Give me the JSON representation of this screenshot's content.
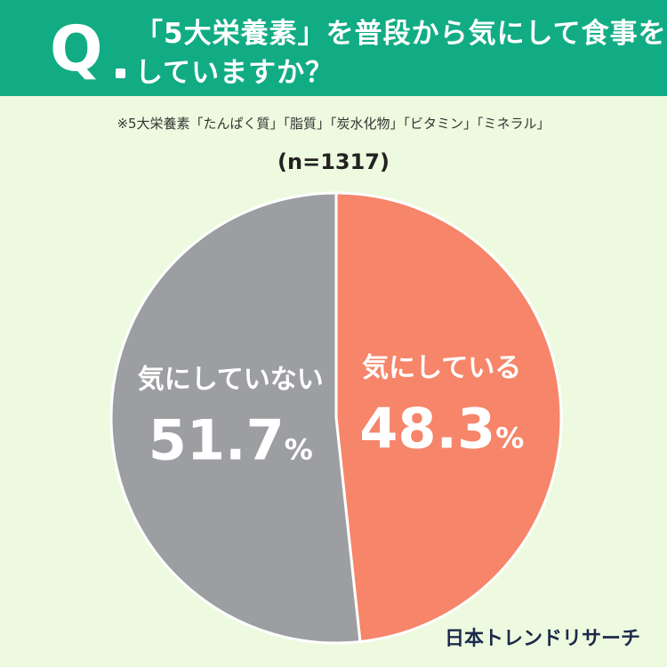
{
  "header": {
    "q_mark": "Q",
    "question_line1": "「5大栄養素」を普段から気にして食事を",
    "question_line2": "していますか？",
    "background_color": "#12ac84"
  },
  "note": "※5大栄養素「たんぱく質」「脂質」「炭水化物」「ビタミン」「ミネラル」",
  "sample_size": "(n=1317)",
  "logo_text": "日本トレンドリサーチ",
  "chart_data": {
    "type": "pie",
    "title": "「5大栄養素」を普段から気にして食事をしていますか？",
    "categories": [
      "気にしている",
      "気にしていない"
    ],
    "values": [
      48.3,
      51.7
    ],
    "unit": "%",
    "colors": [
      "#f6856a",
      "#9c9ea2"
    ],
    "start_angle_deg": 0,
    "direction": "clockwise",
    "labels": [
      {
        "text": "気にしている",
        "value": "48.3"
      },
      {
        "text": "気にしていない",
        "value": "51.7"
      }
    ]
  }
}
